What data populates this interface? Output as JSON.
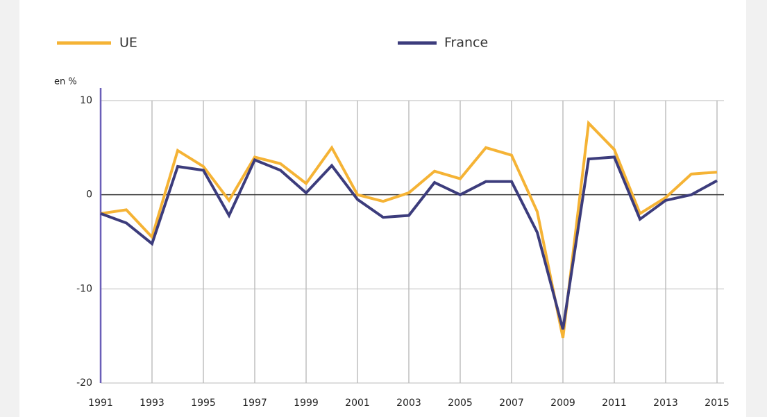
{
  "chart_data": {
    "type": "line",
    "y_label": "en %",
    "x": [
      1991,
      1992,
      1993,
      1994,
      1995,
      1996,
      1997,
      1998,
      1999,
      2000,
      2001,
      2002,
      2003,
      2004,
      2005,
      2006,
      2007,
      2008,
      2009,
      2010,
      2011,
      2012,
      2013,
      2014,
      2015
    ],
    "series": [
      {
        "name": "UE",
        "color": "#f5b335",
        "values": [
          -2.0,
          -1.6,
          -4.5,
          4.7,
          3.0,
          -0.6,
          4.0,
          3.3,
          1.2,
          5.0,
          0.0,
          -0.7,
          0.2,
          2.5,
          1.7,
          5.0,
          4.2,
          -1.8,
          -15.2,
          7.6,
          4.8,
          -2.0,
          -0.3,
          2.2,
          2.4
        ]
      },
      {
        "name": "France",
        "color": "#3c3c7c",
        "values": [
          -2.0,
          -3.0,
          -5.2,
          3.0,
          2.6,
          -2.2,
          3.7,
          2.6,
          0.2,
          3.1,
          -0.5,
          -2.4,
          -2.2,
          1.3,
          0.0,
          1.4,
          1.4,
          -4.0,
          -14.3,
          3.8,
          4.0,
          -2.6,
          -0.6,
          0.0,
          1.5
        ]
      }
    ],
    "xlim": [
      1991,
      2015
    ],
    "xticks": [
      1991,
      1993,
      1995,
      1997,
      1999,
      2001,
      2003,
      2005,
      2007,
      2009,
      2011,
      2013,
      2015
    ],
    "ylim": [
      -20,
      10
    ],
    "yticks": [
      10,
      0,
      -10,
      -20
    ],
    "grid": true
  }
}
